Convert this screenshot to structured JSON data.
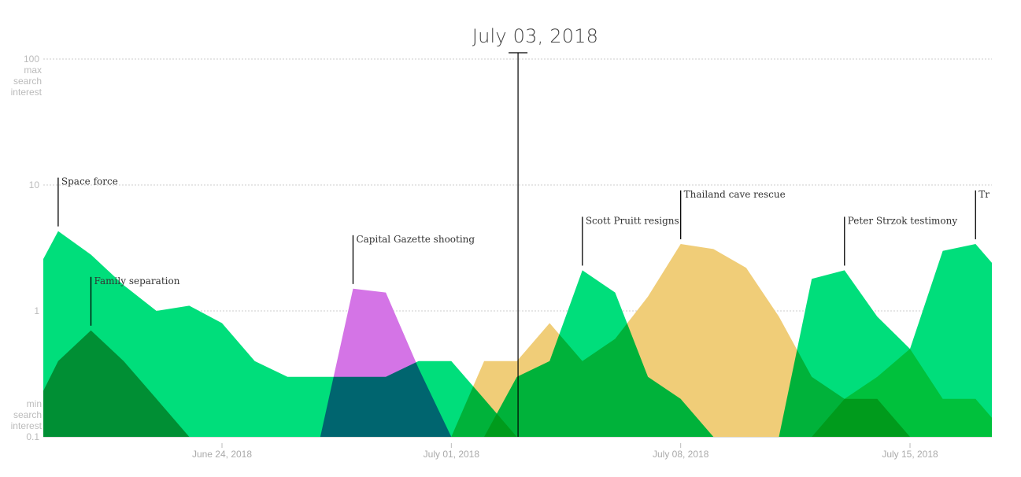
{
  "chart_data": {
    "type": "area",
    "title": "July 03, 2018",
    "cursor_date": "2018-07-03",
    "y_scale": "log",
    "ylim": [
      0.1,
      100
    ],
    "y_ticks": [
      {
        "value": 0.1,
        "label": "0.1",
        "note": [
          "min",
          "search",
          "interest"
        ]
      },
      {
        "value": 1,
        "label": "1",
        "note": []
      },
      {
        "value": 10,
        "label": "10",
        "note": []
      },
      {
        "value": 100,
        "label": "100",
        "note": [
          "max",
          "search",
          "interest"
        ]
      }
    ],
    "x_ticks": [
      {
        "date": "2018-06-24",
        "label": "June 24, 2018"
      },
      {
        "date": "2018-07-01",
        "label": "July 01, 2018"
      },
      {
        "date": "2018-07-08",
        "label": "July 08, 2018"
      },
      {
        "date": "2018-07-15",
        "label": "July 15, 2018"
      }
    ],
    "xlim": [
      "2018-06-18T13:00",
      "2018-07-17T09:00"
    ],
    "grid": true,
    "blend": "multiply",
    "series": [
      {
        "name": "Space force",
        "color": "#00de7b",
        "peak": "2018-06-19",
        "dates": [
          "2018-06-18",
          "2018-06-19",
          "2018-06-20",
          "2018-06-21",
          "2018-06-22",
          "2018-06-23",
          "2018-06-24",
          "2018-06-25",
          "2018-06-26",
          "2018-06-27",
          "2018-06-28",
          "2018-06-29",
          "2018-06-30",
          "2018-07-01",
          "2018-07-02",
          "2018-07-03"
        ],
        "values": [
          1.4,
          4.3,
          2.8,
          1.6,
          1.0,
          1.1,
          0.8,
          0.4,
          0.3,
          0.3,
          0.3,
          0.3,
          0.4,
          0.4,
          0.2,
          0.1
        ]
      },
      {
        "name": "Family separation",
        "color": "#00a46b",
        "peak": "2018-06-20",
        "dates": [
          "2018-06-18",
          "2018-06-19",
          "2018-06-20",
          "2018-06-21",
          "2018-06-22",
          "2018-06-23"
        ],
        "values": [
          0.12,
          0.4,
          0.7,
          0.4,
          0.2,
          0.1
        ]
      },
      {
        "name": "Capital Gazette shooting",
        "color": "#d474e6",
        "peak": "2018-06-28",
        "dates": [
          "2018-06-27",
          "2018-06-28",
          "2018-06-29",
          "2018-06-30",
          "2018-07-01"
        ],
        "values": [
          0.1,
          1.5,
          1.4,
          0.35,
          0.1
        ]
      },
      {
        "name": "Thailand cave rescue",
        "color": "#f0cd78",
        "peak": "2018-07-08",
        "dates": [
          "2018-07-01",
          "2018-07-02",
          "2018-07-03",
          "2018-07-04",
          "2018-07-05",
          "2018-07-06",
          "2018-07-07",
          "2018-07-08",
          "2018-07-09",
          "2018-07-10",
          "2018-07-11",
          "2018-07-12",
          "2018-07-13",
          "2018-07-14",
          "2018-07-15"
        ],
        "values": [
          0.1,
          0.4,
          0.4,
          0.8,
          0.4,
          0.6,
          1.3,
          3.4,
          3.1,
          2.2,
          0.9,
          0.3,
          0.2,
          0.2,
          0.1
        ]
      },
      {
        "name": "Scott Pruitt resigns",
        "color": "#00de7b",
        "peak": "2018-07-05",
        "dates": [
          "2018-07-02",
          "2018-07-03",
          "2018-07-04",
          "2018-07-05",
          "2018-07-06",
          "2018-07-07",
          "2018-07-08",
          "2018-07-09"
        ],
        "values": [
          0.1,
          0.3,
          0.4,
          2.1,
          1.4,
          0.3,
          0.2,
          0.1
        ]
      },
      {
        "name": "Peter Strzok testimony",
        "color": "#00de7b",
        "peak": "2018-07-13",
        "dates": [
          "2018-07-11",
          "2018-07-12",
          "2018-07-13",
          "2018-07-14",
          "2018-07-15",
          "2018-07-16",
          "2018-07-17",
          "2018-07-18"
        ],
        "values": [
          0.1,
          1.8,
          2.1,
          0.9,
          0.5,
          0.2,
          0.2,
          0.1
        ]
      },
      {
        "name": "Tr",
        "color": "#00de7b",
        "peak": "2018-07-17",
        "dates": [
          "2018-07-12",
          "2018-07-13",
          "2018-07-14",
          "2018-07-15",
          "2018-07-16",
          "2018-07-17",
          "2018-07-18"
        ],
        "values": [
          0.1,
          0.2,
          0.3,
          0.5,
          3.0,
          3.4,
          1.7
        ]
      }
    ]
  }
}
